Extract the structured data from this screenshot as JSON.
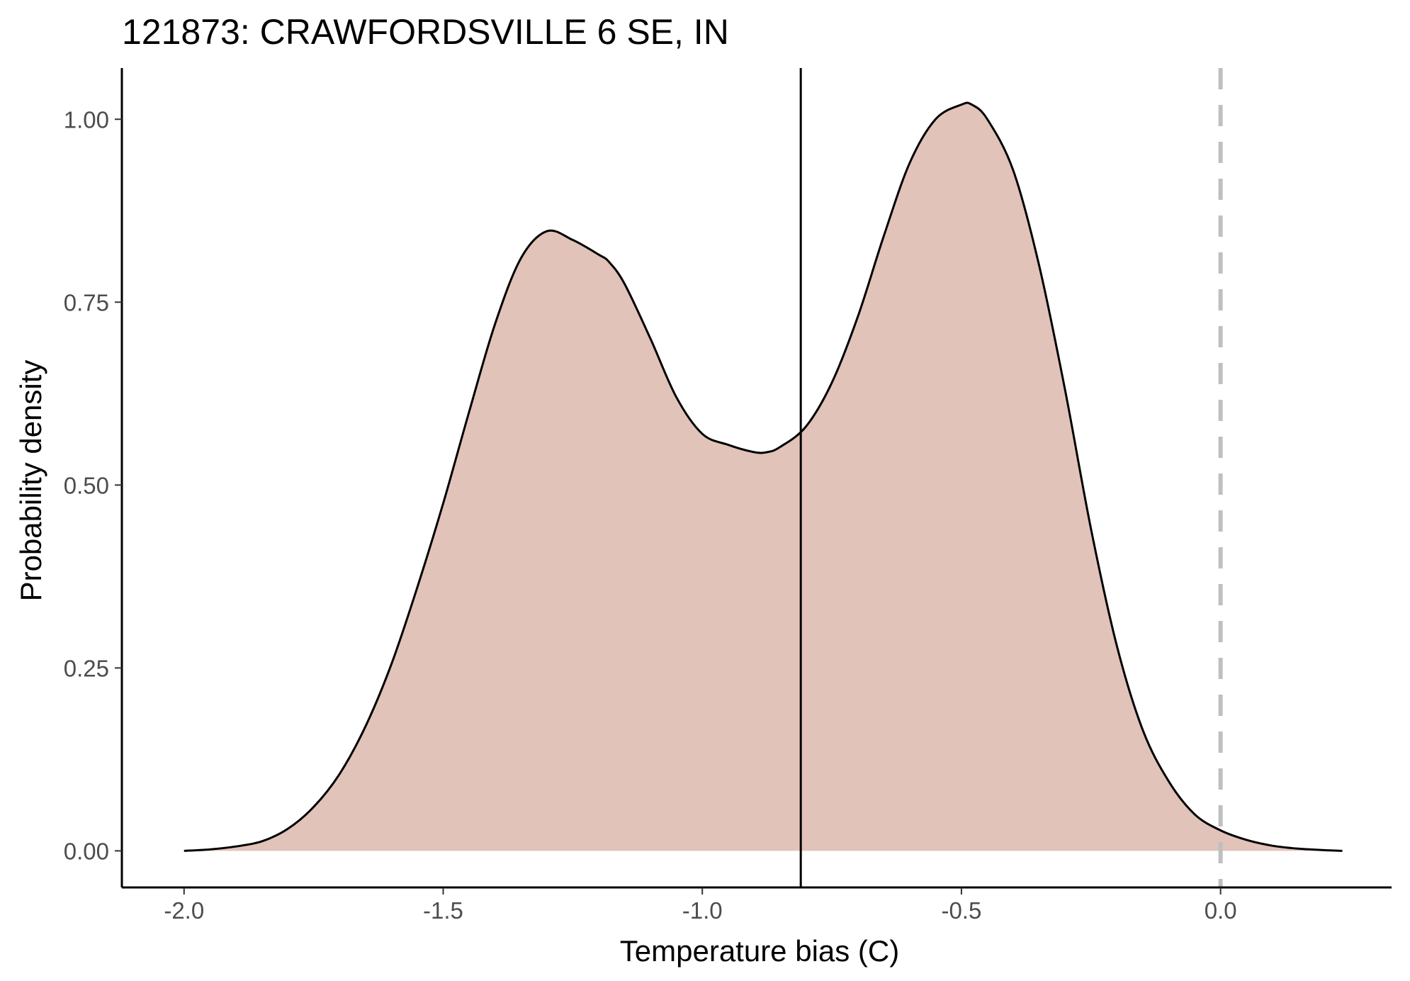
{
  "chart_data": {
    "type": "area",
    "title": "121873: CRAWFORDSVILLE 6 SE, IN",
    "xlabel": "Temperature bias (C)",
    "ylabel": "Probability density",
    "xlim": [
      -2.12,
      0.33
    ],
    "ylim": [
      -0.05,
      1.07
    ],
    "x_ticks": [
      {
        "value": -2.0,
        "label": "-2.0"
      },
      {
        "value": -1.5,
        "label": "-1.5"
      },
      {
        "value": -1.0,
        "label": "-1.0"
      },
      {
        "value": -0.5,
        "label": "-0.5"
      },
      {
        "value": 0.0,
        "label": "0.0"
      }
    ],
    "y_ticks": [
      {
        "value": 0.0,
        "label": "0.00"
      },
      {
        "value": 0.25,
        "label": "0.25"
      },
      {
        "value": 0.5,
        "label": "0.50"
      },
      {
        "value": 0.75,
        "label": "0.75"
      },
      {
        "value": 1.0,
        "label": "1.00"
      }
    ],
    "grid": false,
    "legend": "none",
    "fill_color": "#e2c3b9",
    "line_color": "#000000",
    "series": [
      {
        "x": [
          -2.0,
          -1.95,
          -1.9,
          -1.85,
          -1.8,
          -1.75,
          -1.7,
          -1.65,
          -1.6,
          -1.55,
          -1.5,
          -1.45,
          -1.4,
          -1.35,
          -1.3,
          -1.25,
          -1.2,
          -1.18,
          -1.15,
          -1.1,
          -1.05,
          -1.0,
          -0.95,
          -0.9,
          -0.875,
          -0.85,
          -0.8,
          -0.75,
          -0.7,
          -0.65,
          -0.6,
          -0.55,
          -0.5,
          -0.48,
          -0.45,
          -0.4,
          -0.35,
          -0.3,
          -0.25,
          -0.2,
          -0.15,
          -0.1,
          -0.05,
          0.0,
          0.05,
          0.1,
          0.15,
          0.2,
          0.235
        ],
        "values": [
          0.0,
          0.002,
          0.006,
          0.013,
          0.03,
          0.06,
          0.105,
          0.17,
          0.255,
          0.36,
          0.475,
          0.6,
          0.72,
          0.81,
          0.847,
          0.835,
          0.815,
          0.805,
          0.775,
          0.7,
          0.62,
          0.57,
          0.555,
          0.545,
          0.545,
          0.552,
          0.58,
          0.64,
          0.73,
          0.84,
          0.94,
          1.0,
          1.02,
          1.02,
          1.0,
          0.93,
          0.8,
          0.63,
          0.44,
          0.28,
          0.165,
          0.095,
          0.05,
          0.028,
          0.015,
          0.007,
          0.003,
          0.001,
          0.0
        ]
      }
    ],
    "reference_lines": [
      {
        "x": -0.81,
        "style": "solid",
        "color": "#000000"
      },
      {
        "x": 0.0,
        "style": "dashed",
        "color": "#bfbfbf"
      }
    ]
  }
}
